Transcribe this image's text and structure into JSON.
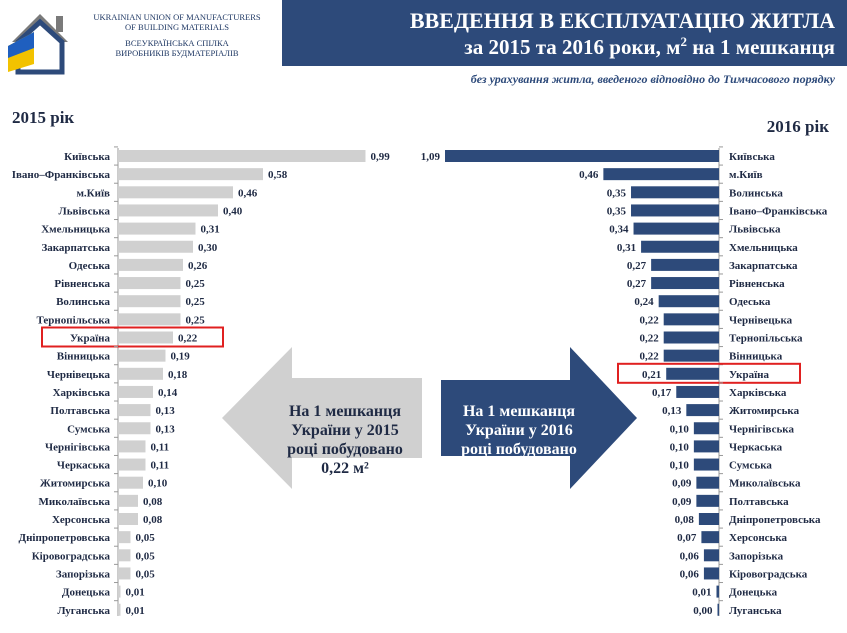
{
  "logo": {
    "line1": "UKRAINIAN UNION OF MANUFACTURERS",
    "line2": "OF BUILDING MATERIALS",
    "line3": "ВСЕУКРАЇНСЬКА СПІЛКА",
    "line4": "ВИРОБНИКІВ БУДМАТЕРІАЛІВ"
  },
  "header": {
    "title_line1": "ВВЕДЕННЯ В ЕКСПЛУАТАЦІЮ ЖИТЛА",
    "title_line2_prefix": "за 2015 та 2016 роки, м",
    "title_line2_sup": "2",
    "title_line2_suffix": " на 1 мешканця",
    "subtitle": "без урахування житла, введеного відповідно до Тимчасового порядку"
  },
  "colors": {
    "bar_2015": "#d0d0d0",
    "bar_2016": "#2d4a7a",
    "highlight": "#e02020",
    "header_bg": "#2d4a7a",
    "arrow_2015": "#d0d0d0",
    "arrow_2016": "#2d4a7a"
  },
  "arrows": {
    "left": {
      "line1": "На 1 мешканця",
      "line2": "України у 2015",
      "line3": "році побудовано",
      "line4": "0,22 м²"
    },
    "right": {
      "line1": "На 1 мешканця",
      "line2": "України у 2016",
      "line3": "році побудовано",
      "line4": "0,21 м²"
    }
  },
  "chart_data": [
    {
      "type": "bar",
      "orientation": "horizontal",
      "title": "2015 рік",
      "highlight": "Україна",
      "categories": [
        "Київська",
        "Івано–Франківська",
        "м.Київ",
        "Львівська",
        "Хмельницька",
        "Закарпатська",
        "Одеська",
        "Рівненська",
        "Волинська",
        "Тернопільська",
        "Україна",
        "Вінницька",
        "Чернівецька",
        "Харківська",
        "Полтавська",
        "Сумська",
        "Чернігівська",
        "Черкаська",
        "Житомирська",
        "Миколаївська",
        "Херсонська",
        "Дніпропетровська",
        "Кіровоградська",
        "Запорізька",
        "Донецька",
        "Луганська"
      ],
      "values": [
        0.99,
        0.58,
        0.46,
        0.4,
        0.31,
        0.3,
        0.26,
        0.25,
        0.25,
        0.25,
        0.22,
        0.19,
        0.18,
        0.14,
        0.13,
        0.13,
        0.11,
        0.11,
        0.1,
        0.08,
        0.08,
        0.05,
        0.05,
        0.05,
        0.01,
        0.01
      ],
      "labels": [
        "0,99",
        "0,58",
        "0,46",
        "0,40",
        "0,31",
        "0,30",
        "0,26",
        "0,25",
        "0,25",
        "0,25",
        "0,22",
        "0,19",
        "0,18",
        "0,14",
        "0,13",
        "0,13",
        "0,11",
        "0,11",
        "0,10",
        "0,08",
        "0,08",
        "0,05",
        "0,05",
        "0,05",
        "0,01",
        "0,01"
      ]
    },
    {
      "type": "bar",
      "orientation": "horizontal",
      "title": "2016 рік",
      "highlight": "Україна",
      "categories": [
        "Київська",
        "м.Київ",
        "Волинська",
        "Івано–Франківська",
        "Львівська",
        "Хмельницька",
        "Закарпатська",
        "Рівненська",
        "Одеська",
        "Чернівецька",
        "Тернопільська",
        "Вінницька",
        "Україна",
        "Харківська",
        "Житомирська",
        "Чернігівська",
        "Черкаська",
        "Сумська",
        "Миколаївська",
        "Полтавська",
        "Дніпропетровська",
        "Херсонська",
        "Запорізька",
        "Кіровоградська",
        "Донецька",
        "Луганська"
      ],
      "values": [
        1.09,
        0.46,
        0.35,
        0.35,
        0.34,
        0.31,
        0.27,
        0.27,
        0.24,
        0.22,
        0.22,
        0.22,
        0.21,
        0.17,
        0.13,
        0.1,
        0.1,
        0.1,
        0.09,
        0.09,
        0.08,
        0.07,
        0.06,
        0.06,
        0.01,
        0.0
      ],
      "labels": [
        "1,09",
        "0,46",
        "0,35",
        "0,35",
        "0,34",
        "0,31",
        "0,27",
        "0,27",
        "0,24",
        "0,22",
        "0,22",
        "0,22",
        "0,21",
        "0,17",
        "0,13",
        "0,10",
        "0,10",
        "0,10",
        "0,09",
        "0,09",
        "0,08",
        "0,07",
        "0,06",
        "0,06",
        "0,01",
        "0,00"
      ]
    }
  ]
}
